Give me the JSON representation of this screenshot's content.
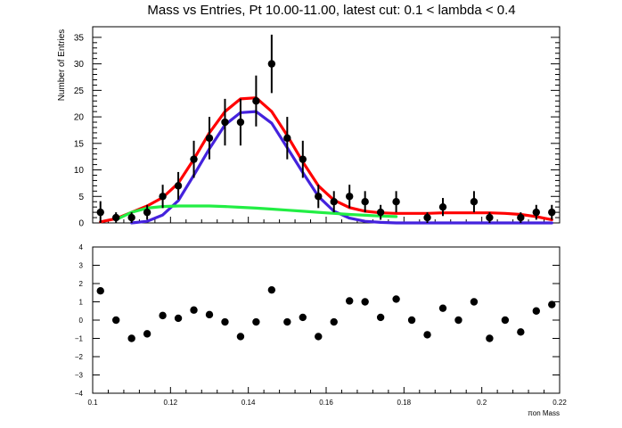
{
  "chart_data": [
    {
      "type": "scatter",
      "title": "Mass vs Entries, Pt 10.00-11.00, latest cut: 0.1 < lambda < 0.4",
      "ylabel": "Number of Entries",
      "xlim": [
        0.1,
        0.22
      ],
      "ylim": [
        0,
        37
      ],
      "yticks": [
        0,
        5,
        10,
        15,
        20,
        25,
        30,
        35
      ],
      "series": [
        {
          "kind": "points-with-errors",
          "color": "#000000",
          "x": [
            0.102,
            0.106,
            0.11,
            0.114,
            0.118,
            0.122,
            0.126,
            0.13,
            0.134,
            0.138,
            0.142,
            0.146,
            0.15,
            0.154,
            0.158,
            0.162,
            0.166,
            0.17,
            0.174,
            0.178,
            0.186,
            0.19,
            0.198,
            0.202,
            0.21,
            0.214,
            0.218
          ],
          "y": [
            2,
            1,
            1,
            2,
            5,
            7,
            12,
            16,
            19,
            19,
            23,
            30,
            16,
            12,
            5,
            4,
            5,
            4,
            2,
            4,
            1,
            3,
            4,
            1,
            1,
            2,
            2
          ]
        },
        {
          "kind": "curve",
          "color": "#ff0000",
          "x": [
            0.102,
            0.106,
            0.11,
            0.114,
            0.118,
            0.122,
            0.126,
            0.13,
            0.134,
            0.138,
            0.142,
            0.146,
            0.15,
            0.154,
            0.158,
            0.162,
            0.166,
            0.17,
            0.174,
            0.178,
            0.182,
            0.186,
            0.19,
            0.194,
            0.198,
            0.202,
            0.206,
            0.21,
            0.214,
            0.218
          ],
          "y": [
            0.2,
            0.8,
            2.0,
            3.2,
            4.8,
            7.5,
            12.0,
            17.0,
            21.0,
            23.4,
            23.6,
            21.0,
            16.5,
            11.5,
            7.0,
            4.3,
            2.9,
            2.2,
            1.9,
            1.8,
            1.8,
            1.8,
            1.9,
            1.9,
            1.9,
            1.9,
            1.8,
            1.6,
            1.2,
            0.6
          ]
        },
        {
          "kind": "curve",
          "color": "#4422dd",
          "x": [
            0.11,
            0.114,
            0.118,
            0.122,
            0.126,
            0.13,
            0.134,
            0.138,
            0.142,
            0.146,
            0.15,
            0.154,
            0.158,
            0.162,
            0.166,
            0.17,
            0.174,
            0.178,
            0.182,
            0.19,
            0.2,
            0.21,
            0.218
          ],
          "y": [
            0.0,
            0.3,
            1.5,
            4.2,
            9.0,
            14.0,
            18.5,
            20.8,
            21.0,
            18.8,
            14.2,
            9.5,
            5.0,
            2.2,
            0.9,
            0.3,
            0.1,
            0.0,
            0.0,
            0.0,
            0.0,
            0.0,
            0.0
          ]
        },
        {
          "kind": "curve",
          "color": "#22ee44",
          "x": [
            0.106,
            0.11,
            0.114,
            0.118,
            0.122,
            0.126,
            0.13,
            0.134,
            0.138,
            0.142,
            0.146,
            0.15,
            0.154,
            0.158,
            0.162,
            0.166,
            0.17,
            0.174,
            0.178
          ],
          "y": [
            0.6,
            2.0,
            2.8,
            3.1,
            3.2,
            3.2,
            3.2,
            3.1,
            2.95,
            2.8,
            2.6,
            2.4,
            2.2,
            2.0,
            1.8,
            1.6,
            1.45,
            1.3,
            1.2
          ]
        }
      ],
      "error_bars": [
        2.1,
        1.0,
        1.0,
        1.4,
        2.2,
        2.6,
        3.5,
        4.0,
        4.4,
        4.4,
        4.8,
        5.5,
        4.0,
        3.5,
        2.2,
        2.0,
        2.2,
        2.0,
        1.4,
        2.0,
        1.0,
        1.7,
        2.0,
        1.0,
        1.0,
        1.4,
        1.4
      ]
    },
    {
      "type": "scatter",
      "xlabel": "πon Mass",
      "xlim": [
        0.1,
        0.22
      ],
      "ylim": [
        -4,
        4
      ],
      "xticks": [
        "0.1",
        "0.12",
        "0.14",
        "0.16",
        "0.18",
        "0.2",
        "0.22"
      ],
      "xtick_values": [
        0.1,
        0.12,
        0.14,
        0.16,
        0.18,
        0.2,
        0.22
      ],
      "yticks": [
        -4,
        -3,
        -2,
        -1,
        0,
        1,
        2,
        3,
        4
      ],
      "ytick_labels": [
        "−4",
        "−3",
        "−2",
        "−1",
        "0",
        "1",
        "2",
        "3",
        "4"
      ],
      "series": [
        {
          "kind": "residuals",
          "color": "#000000",
          "x": [
            0.102,
            0.106,
            0.11,
            0.114,
            0.118,
            0.122,
            0.126,
            0.13,
            0.134,
            0.138,
            0.142,
            0.146,
            0.15,
            0.154,
            0.158,
            0.162,
            0.166,
            0.17,
            0.174,
            0.178,
            0.182,
            0.186,
            0.19,
            0.194,
            0.198,
            0.202,
            0.206,
            0.21,
            0.214,
            0.218
          ],
          "y": [
            1.6,
            0.0,
            -1.0,
            -0.75,
            0.25,
            0.1,
            0.55,
            0.3,
            -0.1,
            -0.9,
            -0.1,
            1.65,
            -0.1,
            0.15,
            -0.9,
            -0.1,
            1.05,
            1.0,
            0.15,
            1.15,
            0.0,
            -0.8,
            0.65,
            0.0,
            1.0,
            -1.0,
            0.0,
            -0.65,
            0.5,
            0.85
          ]
        }
      ]
    }
  ]
}
